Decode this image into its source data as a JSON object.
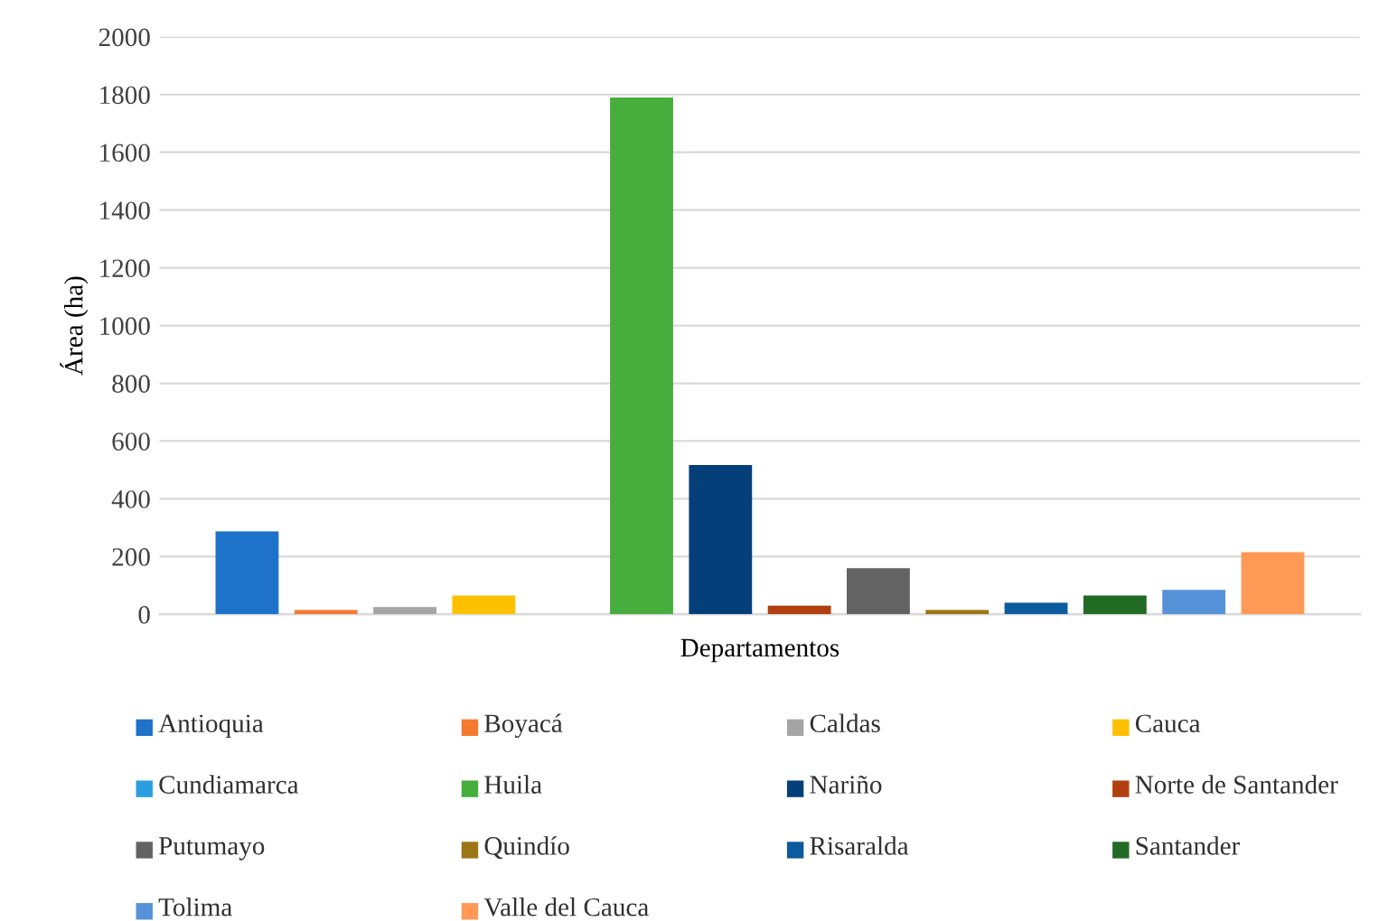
{
  "chart_data": {
    "type": "bar",
    "xlabel": "Departamentos",
    "ylabel": "Área (ha)",
    "categories": [
      null
    ],
    "series": [
      {
        "name": "Antioquia",
        "color": "#1f72c9",
        "values": [
          287
        ]
      },
      {
        "name": "Boyacá",
        "color": "#f47a30",
        "values": [
          15
        ]
      },
      {
        "name": "Caldas",
        "color": "#a5a5a5",
        "values": [
          25
        ]
      },
      {
        "name": "Cauca",
        "color": "#ffc000",
        "values": [
          65
        ]
      },
      {
        "name": "Cundiamarca",
        "color": "#2a9ee0",
        "values": [
          0
        ]
      },
      {
        "name": "Huila",
        "color": "#47ad3c",
        "values": [
          1790
        ]
      },
      {
        "name": "Nariño",
        "color": "#053f7a",
        "values": [
          517
        ]
      },
      {
        "name": "Norte de Santander",
        "color": "#b2400e",
        "values": [
          30
        ]
      },
      {
        "name": "Putumayo",
        "color": "#636363",
        "values": [
          160
        ]
      },
      {
        "name": "Quindío",
        "color": "#9c7516",
        "values": [
          15
        ]
      },
      {
        "name": "Risaralda",
        "color": "#0b5b9e",
        "values": [
          40
        ]
      },
      {
        "name": "Santander",
        "color": "#226b24",
        "values": [
          65
        ]
      },
      {
        "name": "Tolima",
        "color": "#5592d8",
        "values": [
          85
        ]
      },
      {
        "name": "Valle del Cauca",
        "color": "#ff9955",
        "values": [
          215
        ]
      }
    ],
    "ylim": [
      0,
      2000
    ],
    "yticks": [
      0,
      200,
      400,
      600,
      800,
      1000,
      1200,
      1400,
      1600,
      1800,
      2000
    ],
    "grid": "y",
    "legend": "bottom"
  }
}
